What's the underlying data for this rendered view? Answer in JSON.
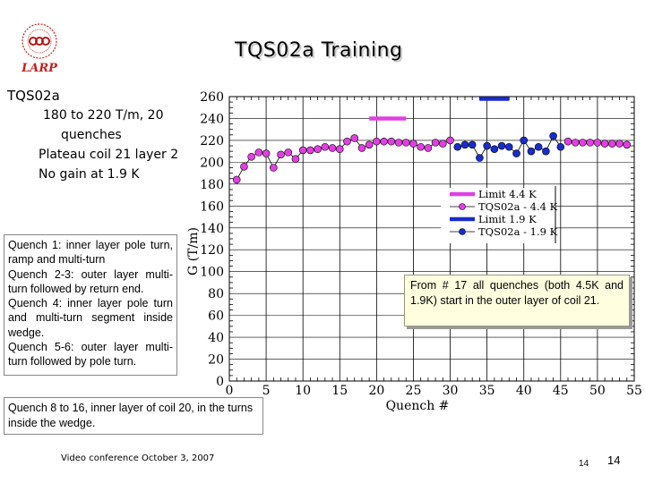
{
  "title": "TQS02a Training",
  "logo_text": "LARP",
  "summary": {
    "heading": "TQS02a",
    "line1": "180 to 220 T/m, 20",
    "line1b": "quenches",
    "line2": "Plateau coil 21 layer 2",
    "line3": "No gain at 1.9 K"
  },
  "quench_notes": [
    "Quench 1: inner layer pole turn, ramp and multi-turn",
    "Quench 2-3: outer layer multi-turn followed by return end.",
    "Quench 4: inner layer pole turn and multi-turn segment inside wedge.",
    "Quench 5-6: outer layer multi-turn followed by pole turn."
  ],
  "bottom_note": "Quench 8 to 16, inner layer of coil 20, in the turns inside the wedge.",
  "callout": "From # 17 all quenches (both 4.5K and 1.9K) start in the outer layer of coil 21.",
  "footer": "Video conference October 3, 2007",
  "page_small": "14",
  "page_big": "14",
  "colors": {
    "magenta": "#e040e0",
    "blue": "#1a2ccc",
    "grid": "#000000"
  },
  "chart_data": {
    "type": "scatter",
    "xlabel": "Quench #",
    "ylabel": "G (T/m)",
    "xlim": [
      0,
      55
    ],
    "ylim": [
      0,
      260
    ],
    "xticks": [
      "0",
      "5",
      "10",
      "15",
      "20",
      "25",
      "30",
      "35",
      "40",
      "45",
      "50",
      "55"
    ],
    "yticks": [
      "0",
      "20",
      "40",
      "60",
      "80",
      "100",
      "120",
      "140",
      "160",
      "180",
      "200",
      "220",
      "240",
      "260"
    ],
    "legend_position": "right-middle",
    "series": [
      {
        "name": "Limit 4.4 K",
        "kind": "limit",
        "color": "#e040e0",
        "x": [
          19,
          24
        ],
        "y": [
          240,
          240
        ]
      },
      {
        "name": "TQS02a - 4.4 K",
        "kind": "points",
        "color": "#e040e0",
        "x": [
          1,
          2,
          3,
          4,
          5,
          6,
          7,
          8,
          9,
          10,
          11,
          12,
          13,
          14,
          15,
          16,
          17,
          18,
          19,
          20,
          21,
          22,
          23,
          24,
          25,
          26,
          27,
          28,
          29,
          30,
          46,
          47,
          48,
          49,
          50,
          51,
          52,
          53,
          54
        ],
        "y": [
          184,
          196,
          205,
          209,
          208,
          195,
          207,
          209,
          203,
          211,
          211,
          212,
          214,
          213,
          212,
          219,
          222,
          213,
          216,
          219,
          219,
          219,
          218,
          218,
          217,
          214,
          213,
          218,
          217,
          220,
          219,
          218,
          218,
          218,
          218,
          217,
          217,
          217,
          216
        ]
      },
      {
        "name": "Limit 1.9 K",
        "kind": "limit",
        "color": "#1a2ccc",
        "x": [
          34,
          38
        ],
        "y": [
          258,
          258
        ]
      },
      {
        "name": "TQS02a - 1.9 K",
        "kind": "points",
        "color": "#1a2ccc",
        "x": [
          31,
          32,
          33,
          34,
          35,
          36,
          37,
          38,
          39,
          40,
          41,
          42,
          43,
          44,
          45
        ],
        "y": [
          214,
          216,
          216,
          204,
          215,
          212,
          215,
          214,
          208,
          220,
          210,
          214,
          210,
          224,
          214
        ]
      }
    ]
  }
}
